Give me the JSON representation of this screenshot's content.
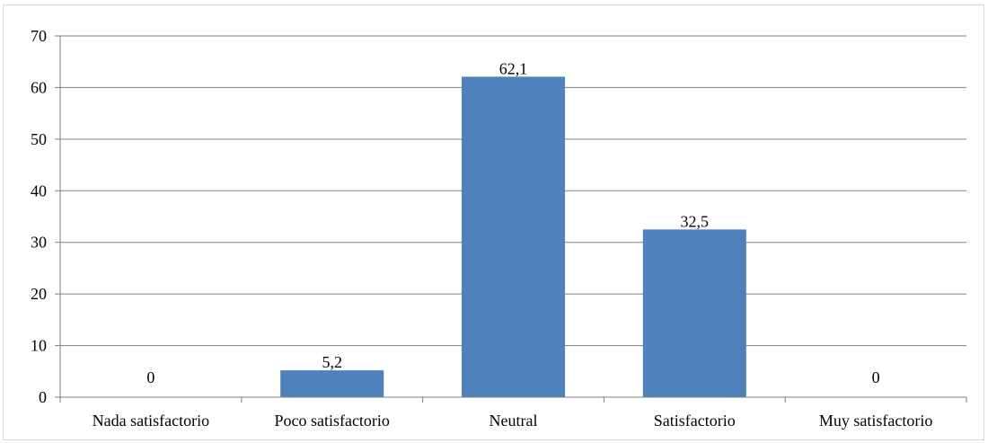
{
  "chart_data": {
    "type": "bar",
    "categories": [
      "Nada satisfactorio",
      "Poco satisfactorio",
      "Neutral",
      "Satisfactorio",
      "Muy satisfactorio"
    ],
    "values": [
      0,
      5.2,
      62.1,
      32.5,
      0
    ],
    "data_labels": [
      "0",
      "5,2",
      "62,1",
      "32,5",
      "0"
    ],
    "y_ticks": [
      0,
      10,
      20,
      30,
      40,
      50,
      60,
      70
    ],
    "ylim": [
      0,
      70
    ],
    "title": "",
    "xlabel": "",
    "ylabel": "",
    "grid": true,
    "legend": "none",
    "bar_color": "#4f81bd",
    "grid_color": "#808080"
  }
}
